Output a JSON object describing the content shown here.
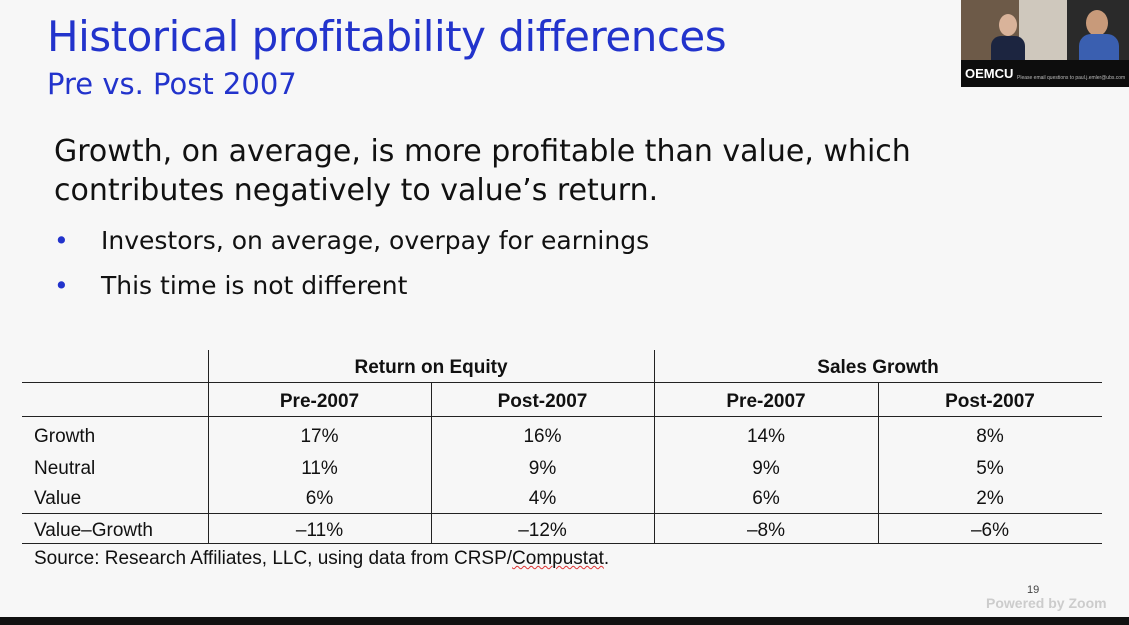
{
  "slide": {
    "title": "Historical profitability differences",
    "subtitle": "Pre vs. Post 2007",
    "body_line1": "Growth, on average, is more profitable than value, which",
    "body_line2": "contributes negatively to value’s return.",
    "bullets": [
      "Investors, on average, overpay for earnings",
      "This time is not different"
    ],
    "bullet_glyph": "•",
    "table": {
      "group_headers": [
        "Return on Equity",
        "Sales Growth"
      ],
      "sub_headers": [
        "Pre-2007",
        "Post-2007",
        "Pre-2007",
        "Post-2007"
      ],
      "rows": [
        {
          "label": "Growth",
          "values": [
            "17%",
            "16%",
            "14%",
            "8%"
          ]
        },
        {
          "label": "Neutral",
          "values": [
            "11%",
            "9%",
            "9%",
            "5%"
          ]
        },
        {
          "label": "Value",
          "values": [
            "6%",
            "4%",
            "6%",
            "2%"
          ]
        },
        {
          "label": "Value–Growth",
          "values": [
            "–11%",
            "–12%",
            "–8%",
            "–6%"
          ]
        }
      ]
    },
    "source_prefix": "Source: Research Affiliates, LLC, using data from CRSP/",
    "source_squiggle": "Compustat",
    "source_suffix": ".",
    "slide_number": "19"
  },
  "zoom": {
    "watermark": "Powered by Zoom",
    "participant_name": "OEMCU",
    "participant_message": "Please email questions to paul.j.emler@ubs.com"
  },
  "colors": {
    "title_blue": "#2233cc",
    "bullet_blue": "#2233cc"
  }
}
